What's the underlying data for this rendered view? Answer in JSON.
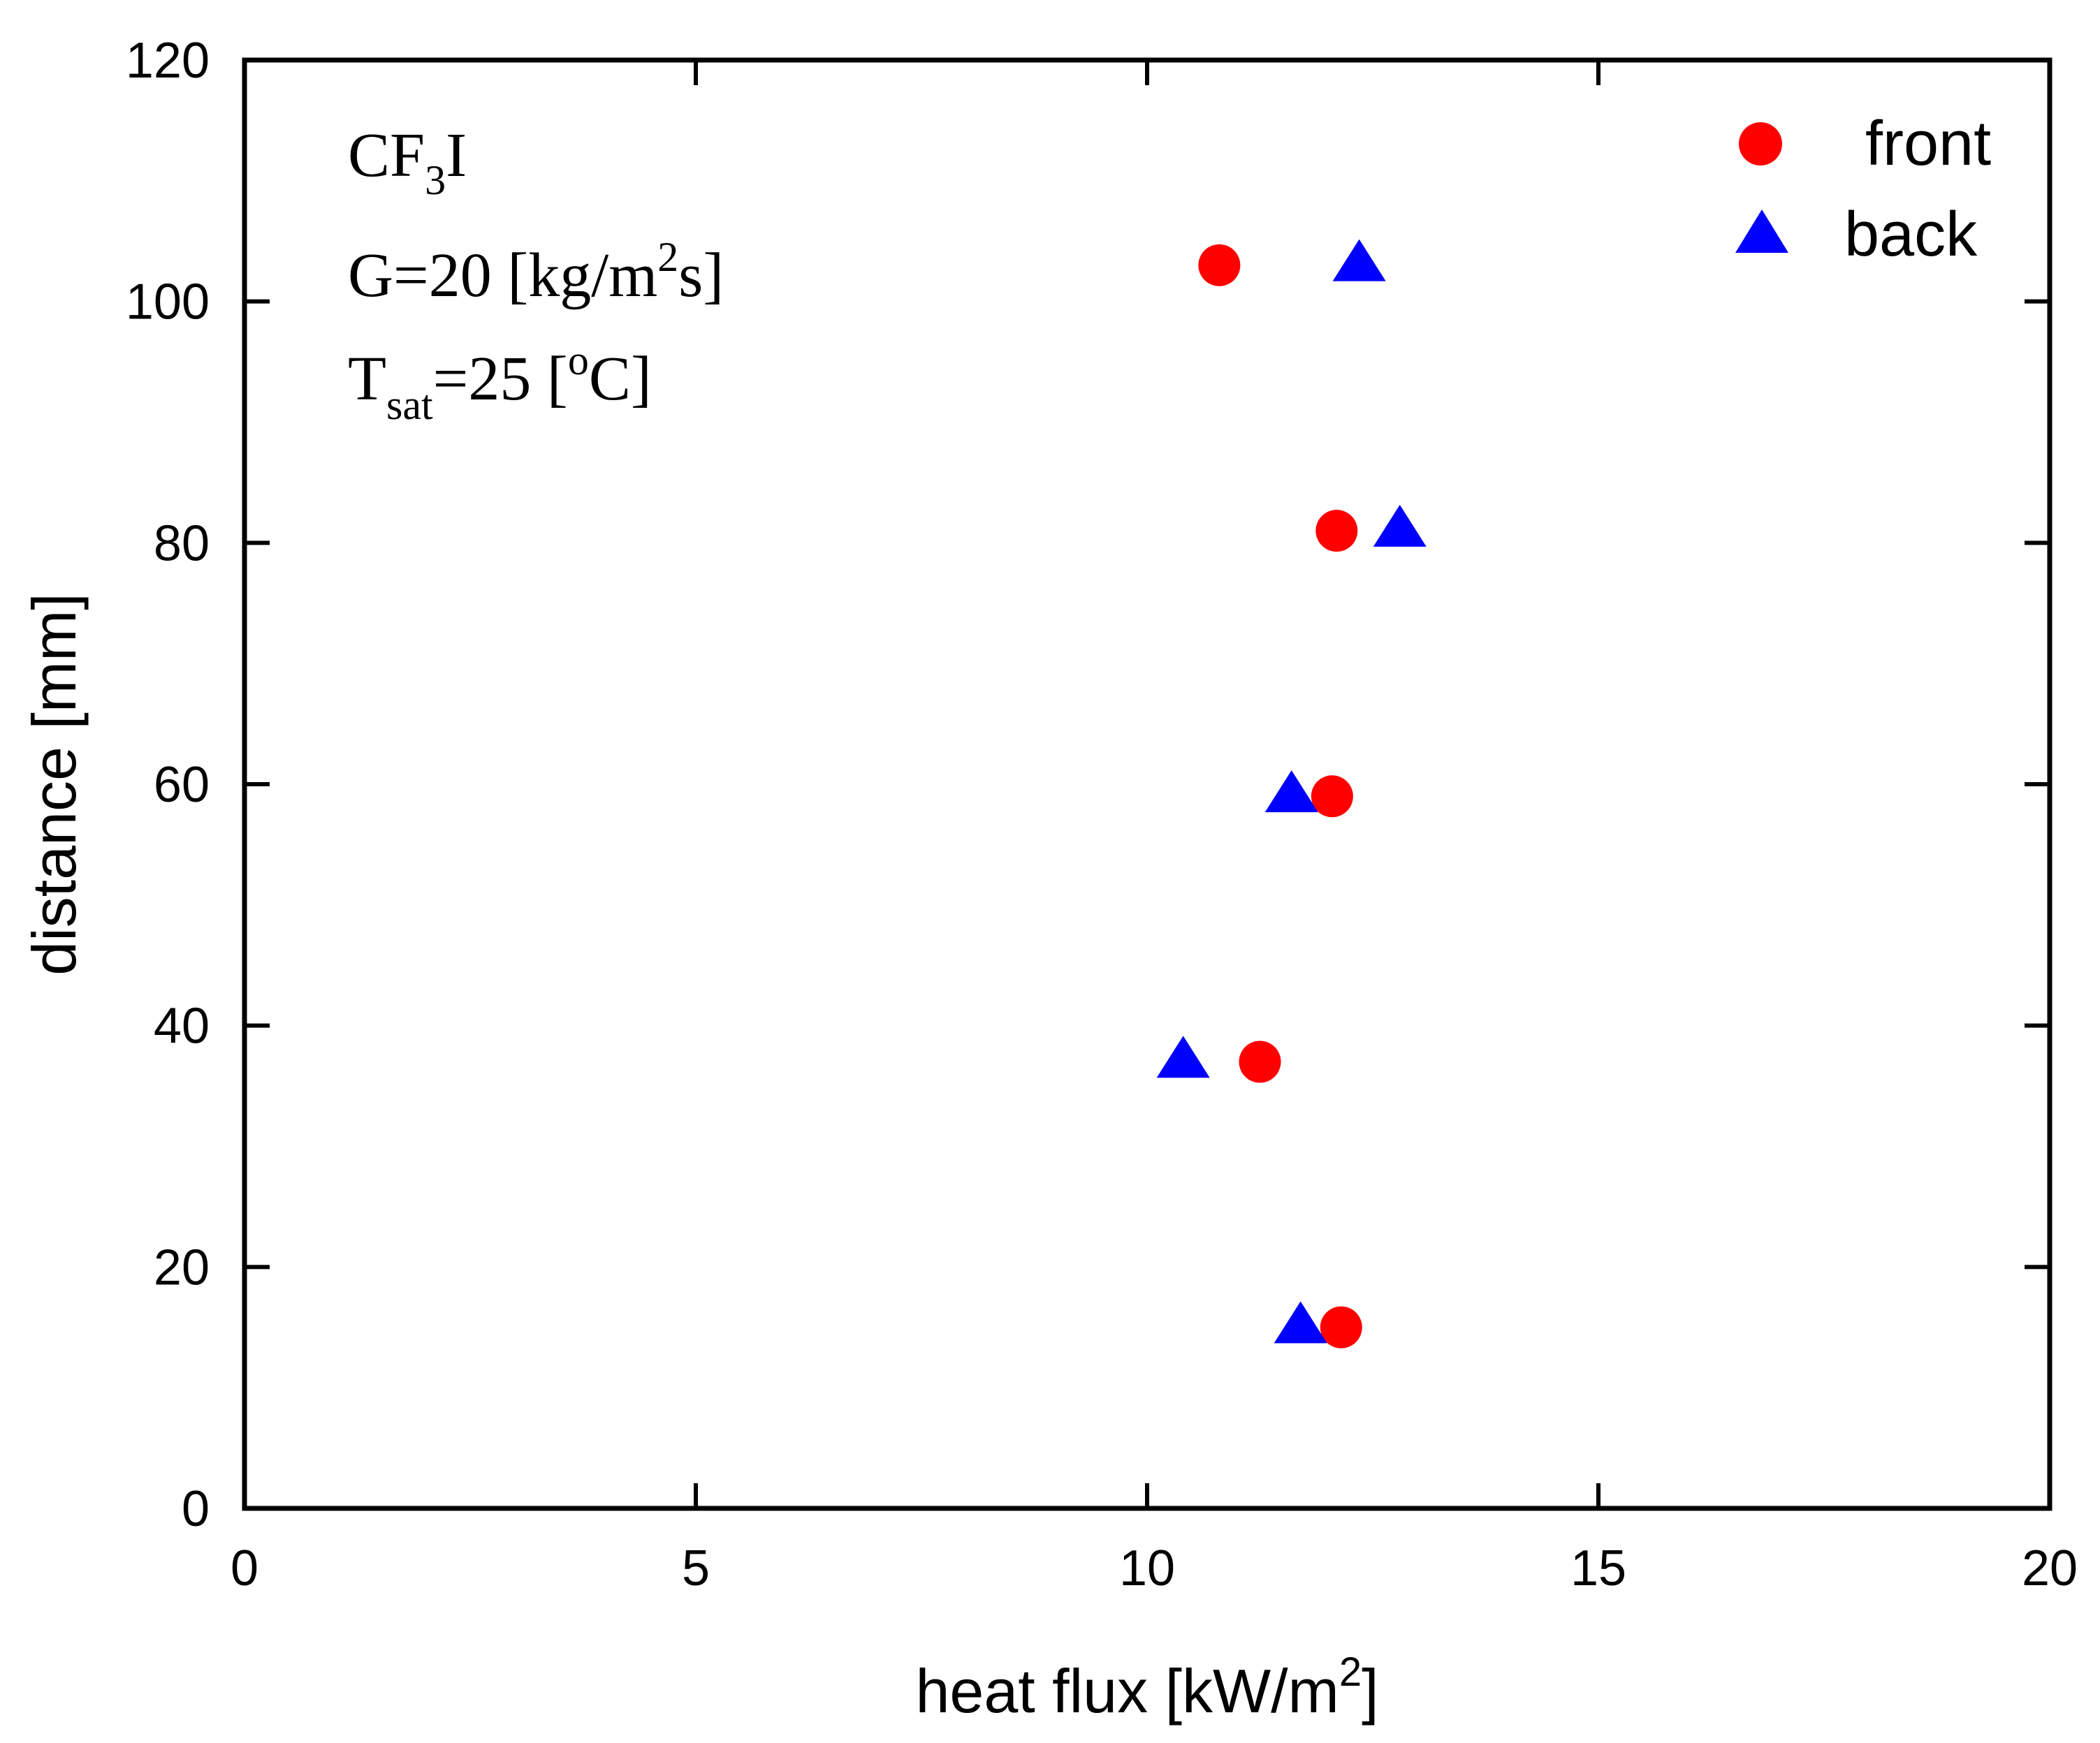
{
  "chart_data": {
    "type": "scatter",
    "title": "",
    "xlabel": "heat flux [kW/m",
    "xlabel_sup": "2",
    "xlabel_suffix": "]",
    "ylabel": "distance [mm]",
    "xlim": [
      0,
      20
    ],
    "ylim": [
      0,
      120
    ],
    "xticks": [
      0,
      5,
      10,
      15,
      20
    ],
    "yticks": [
      0,
      20,
      40,
      60,
      80,
      100,
      120
    ],
    "grid": false,
    "legend_position": "top-right",
    "series": [
      {
        "name": "front",
        "marker": "circle",
        "color": "#ff0000",
        "points": [
          {
            "x": 10.8,
            "y": 103
          },
          {
            "x": 12.1,
            "y": 81
          },
          {
            "x": 12.05,
            "y": 59
          },
          {
            "x": 11.25,
            "y": 37
          },
          {
            "x": 12.15,
            "y": 15
          }
        ]
      },
      {
        "name": "back",
        "marker": "triangle",
        "color": "#0000ff",
        "points": [
          {
            "x": 12.35,
            "y": 103
          },
          {
            "x": 12.8,
            "y": 81
          },
          {
            "x": 11.6,
            "y": 59
          },
          {
            "x": 10.4,
            "y": 37
          },
          {
            "x": 11.7,
            "y": 15
          }
        ]
      }
    ],
    "annotations": {
      "fluid": {
        "base": "CF",
        "sub": "3",
        "tail": "I"
      },
      "mass_flux": {
        "base": "G=20 [kg/m",
        "sup": "2",
        "tail": "s]"
      },
      "saturation": {
        "base": "T",
        "sub": "sat",
        "mid": "=25 [",
        "sup": "o",
        "tail": "C]"
      }
    }
  }
}
